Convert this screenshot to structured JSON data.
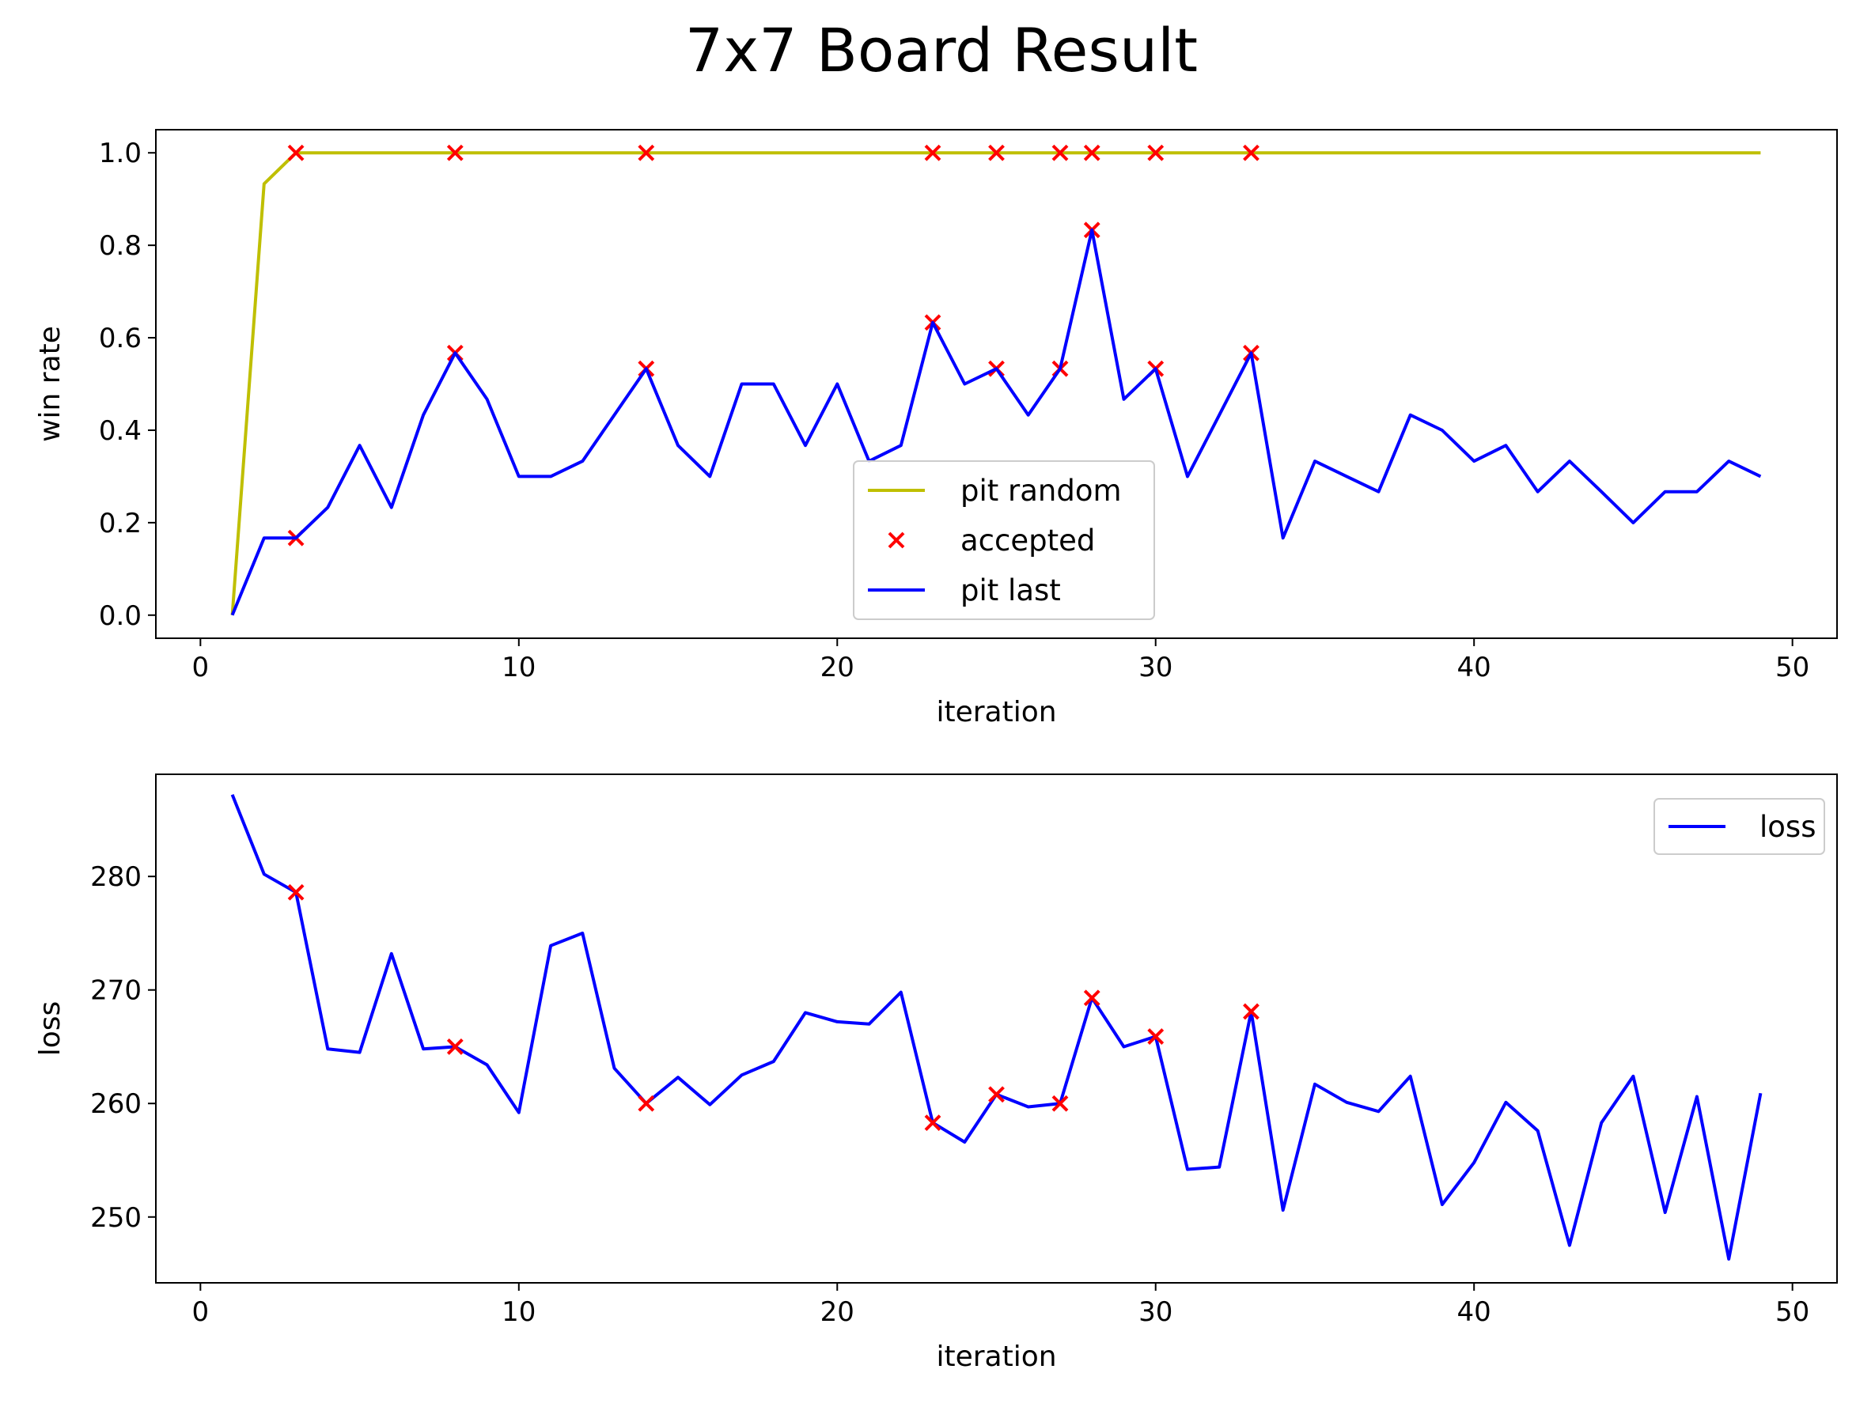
{
  "chart_data": {
    "type": "line",
    "title": "7x7 Board Result",
    "colors": {
      "pit_random": "#bfbf00",
      "pit_last": "#0000ff",
      "accepted": "#ff0000",
      "loss": "#0000ff"
    },
    "charts": [
      {
        "id": "winrate",
        "type": "line",
        "xlabel": "iteration",
        "ylabel": "win rate",
        "xlim": [
          -1.4,
          51.4
        ],
        "ylim": [
          -0.05,
          1.05
        ],
        "xticks": [
          0,
          10,
          20,
          30,
          40,
          50
        ],
        "yticks": [
          0.0,
          0.2,
          0.4,
          0.6,
          0.8,
          1.0
        ],
        "ytick_labels": [
          "0.0",
          "0.2",
          "0.4",
          "0.6",
          "0.8",
          "1.0"
        ],
        "legend_position": "lower-center",
        "series": [
          {
            "name": "pit random",
            "kind": "line",
            "color": "#bfbf00",
            "x": [
              1,
              2,
              3,
              4,
              5,
              6,
              7,
              8,
              9,
              10,
              11,
              12,
              13,
              14,
              15,
              16,
              17,
              18,
              19,
              20,
              21,
              22,
              23,
              24,
              25,
              26,
              27,
              28,
              29,
              30,
              31,
              32,
              33,
              34,
              35,
              36,
              37,
              38,
              39,
              40,
              41,
              42,
              43,
              44,
              45,
              46,
              47,
              48,
              49
            ],
            "y": [
              0.0,
              0.933,
              1,
              1,
              1,
              1,
              1,
              1,
              1,
              1,
              1,
              1,
              1,
              1,
              1,
              1,
              1,
              1,
              1,
              1,
              1,
              1,
              1,
              1,
              1,
              1,
              1,
              1,
              1,
              1,
              1,
              1,
              1,
              1,
              1,
              1,
              1,
              1,
              1,
              1,
              1,
              1,
              1,
              1,
              1,
              1,
              1,
              1,
              1
            ]
          },
          {
            "name": "accepted",
            "kind": "scatter",
            "color": "#ff0000",
            "x": [
              3,
              8,
              14,
              23,
              25,
              27,
              28,
              30,
              33,
              3,
              8,
              14,
              23,
              25,
              27,
              28,
              30,
              33
            ],
            "y": [
              1,
              1,
              1,
              1,
              1,
              1,
              1,
              1,
              1,
              0.167,
              0.567,
              0.533,
              0.633,
              0.533,
              0.533,
              0.833,
              0.533,
              0.567
            ]
          },
          {
            "name": "pit last",
            "kind": "line",
            "color": "#0000ff",
            "x": [
              1,
              2,
              3,
              4,
              5,
              6,
              7,
              8,
              9,
              10,
              11,
              12,
              13,
              14,
              15,
              16,
              17,
              18,
              19,
              20,
              21,
              22,
              23,
              24,
              25,
              26,
              27,
              28,
              29,
              30,
              31,
              32,
              33,
              34,
              35,
              36,
              37,
              38,
              39,
              40,
              41,
              42,
              43,
              44,
              45,
              46,
              47,
              48,
              49
            ],
            "y": [
              0.0,
              0.167,
              0.167,
              0.233,
              0.367,
              0.233,
              0.433,
              0.567,
              0.467,
              0.3,
              0.3,
              0.333,
              0.433,
              0.533,
              0.367,
              0.3,
              0.5,
              0.5,
              0.367,
              0.5,
              0.333,
              0.367,
              0.633,
              0.5,
              0.533,
              0.433,
              0.533,
              0.833,
              0.467,
              0.533,
              0.3,
              0.433,
              0.567,
              0.167,
              0.333,
              0.3,
              0.267,
              0.433,
              0.4,
              0.333,
              0.367,
              0.267,
              0.333,
              0.267,
              0.2,
              0.267,
              0.267,
              0.333,
              0.3
            ]
          }
        ]
      },
      {
        "id": "loss",
        "type": "line",
        "xlabel": "iteration",
        "ylabel": "loss",
        "xlim": [
          -1.4,
          51.4
        ],
        "ylim": [
          244.2,
          289.0
        ],
        "xticks": [
          0,
          10,
          20,
          30,
          40,
          50
        ],
        "yticks": [
          250,
          260,
          270,
          280
        ],
        "ytick_labels": [
          "250",
          "260",
          "270",
          "280"
        ],
        "legend_position": "upper-right",
        "series": [
          {
            "name": "loss",
            "kind": "line",
            "color": "#0000ff",
            "x": [
              1,
              2,
              3,
              4,
              5,
              6,
              7,
              8,
              9,
              10,
              11,
              12,
              13,
              14,
              15,
              16,
              17,
              18,
              19,
              20,
              21,
              22,
              23,
              24,
              25,
              26,
              27,
              28,
              29,
              30,
              31,
              32,
              33,
              34,
              35,
              36,
              37,
              38,
              39,
              40,
              41,
              42,
              43,
              44,
              45,
              46,
              47,
              48,
              49
            ],
            "y": [
              287.2,
              280.2,
              278.6,
              264.8,
              264.5,
              273.2,
              264.8,
              265.0,
              263.4,
              259.2,
              273.9,
              275.0,
              263.1,
              260.0,
              262.3,
              259.9,
              262.5,
              263.7,
              268.0,
              267.2,
              267.0,
              269.8,
              258.3,
              256.6,
              260.8,
              259.7,
              260.0,
              269.3,
              265.0,
              265.9,
              254.2,
              254.4,
              268.1,
              250.6,
              261.7,
              260.1,
              259.3,
              262.4,
              251.1,
              254.8,
              260.1,
              257.6,
              247.5,
              258.3,
              262.4,
              250.4,
              260.6,
              246.3,
              260.9
            ]
          },
          {
            "name": "",
            "kind": "scatter",
            "color": "#ff0000",
            "x": [
              3,
              8,
              14,
              23,
              25,
              27,
              28,
              30,
              33
            ],
            "y": [
              278.6,
              265.0,
              260.0,
              258.3,
              260.8,
              260.0,
              269.3,
              265.9,
              268.1
            ]
          }
        ]
      }
    ]
  }
}
